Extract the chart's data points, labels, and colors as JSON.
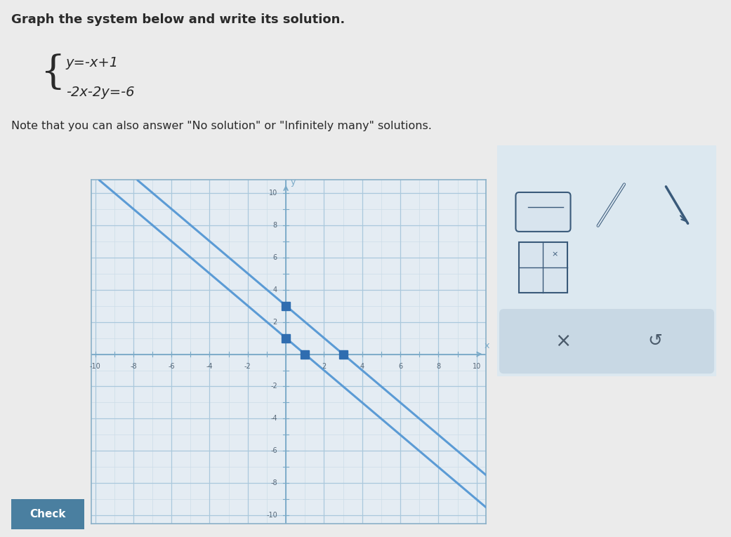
{
  "title": "Graph the system below and write its solution.",
  "eq1": "y=−x+1",
  "eq2": "−2x−2y=−6",
  "note": "Note that you can also answer \"No solution\" or \"Infinitely many\" solutions.",
  "line1_slope": -1,
  "line1_intercept": 1,
  "line2_slope": -1,
  "line2_intercept": 3,
  "line1_markers": [
    [
      0,
      1
    ],
    [
      1,
      0
    ]
  ],
  "line2_markers": [
    [
      0,
      3
    ],
    [
      3,
      0
    ]
  ],
  "line_color": "#5b9bd5",
  "marker_color": "#2f6db0",
  "grid_minor_color": "#ccdde8",
  "grid_major_color": "#aac8dc",
  "axis_color": "#7aaac8",
  "axis_range": [
    -10,
    10
  ],
  "bg_color": "#ebebeb",
  "plot_bg": "#e4ecf3",
  "plot_border_color": "#8ab0c8",
  "toolbar_bg": "#dce8f0",
  "toolbar_border": "#9ab8cc",
  "toolbar_bottom_bg": "#c8d8e4",
  "check_btn_color": "#4a7fa0",
  "text_color": "#2a2a2a"
}
